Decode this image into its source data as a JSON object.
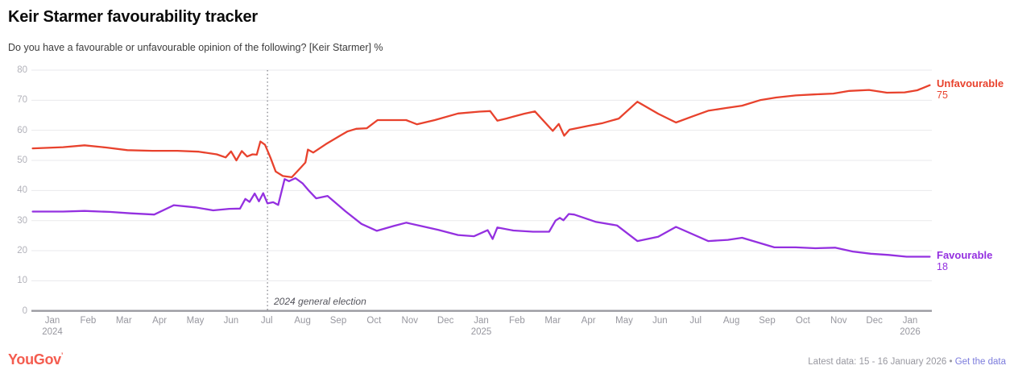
{
  "header": {
    "title": "Keir Starmer favourability tracker",
    "subtitle": "Do you have a favourable or unfavourable opinion of the following? [Keir Starmer] %"
  },
  "chart_data": {
    "type": "line",
    "x_unit": "months since Jan 2024 (fractions = position within month)",
    "ylim": [
      0,
      80
    ],
    "y_ticks": [
      0,
      10,
      20,
      30,
      40,
      50,
      60,
      70,
      80
    ],
    "grid": "horizontal",
    "legend_position": "right-edge-labels",
    "x_ticks": [
      {
        "label": "Jan",
        "year": "2024"
      },
      {
        "label": "Feb"
      },
      {
        "label": "Mar"
      },
      {
        "label": "Apr"
      },
      {
        "label": "May"
      },
      {
        "label": "Jun"
      },
      {
        "label": "Jul"
      },
      {
        "label": "Aug"
      },
      {
        "label": "Sep"
      },
      {
        "label": "Oct"
      },
      {
        "label": "Nov"
      },
      {
        "label": "Dec"
      },
      {
        "label": "Jan",
        "year": "2025"
      },
      {
        "label": "Feb"
      },
      {
        "label": "Mar"
      },
      {
        "label": "Apr"
      },
      {
        "label": "May"
      },
      {
        "label": "Jun"
      },
      {
        "label": "Jul"
      },
      {
        "label": "Aug"
      },
      {
        "label": "Sep"
      },
      {
        "label": "Oct"
      },
      {
        "label": "Nov"
      },
      {
        "label": "Dec"
      },
      {
        "label": "Jan",
        "year": "2026"
      }
    ],
    "annotation": {
      "label": "2024 general election",
      "x": 6.02
    },
    "series": [
      {
        "name": "Unfavourable",
        "color": "#e8422d",
        "latest_value": 75,
        "points": [
          [
            -0.55,
            54
          ],
          [
            0.3,
            54.4
          ],
          [
            0.9,
            55
          ],
          [
            1.5,
            54.3
          ],
          [
            2.1,
            53.4
          ],
          [
            2.8,
            53.2
          ],
          [
            3.5,
            53.2
          ],
          [
            4.1,
            52.9
          ],
          [
            4.6,
            52
          ],
          [
            4.85,
            51
          ],
          [
            5.0,
            53
          ],
          [
            5.15,
            50
          ],
          [
            5.3,
            53.1
          ],
          [
            5.45,
            51.3
          ],
          [
            5.6,
            52
          ],
          [
            5.72,
            51.9
          ],
          [
            5.82,
            56.3
          ],
          [
            5.95,
            55.2
          ],
          [
            6.1,
            51
          ],
          [
            6.25,
            46.3
          ],
          [
            6.45,
            44.8
          ],
          [
            6.7,
            44.4
          ],
          [
            6.95,
            47.6
          ],
          [
            7.08,
            49.3
          ],
          [
            7.15,
            53.6
          ],
          [
            7.3,
            52.6
          ],
          [
            7.65,
            55.4
          ],
          [
            8.05,
            58.2
          ],
          [
            8.25,
            59.6
          ],
          [
            8.5,
            60.5
          ],
          [
            8.8,
            60.7
          ],
          [
            9.1,
            63.4
          ],
          [
            9.5,
            63.4
          ],
          [
            9.9,
            63.4
          ],
          [
            10.2,
            62
          ],
          [
            10.7,
            63.4
          ],
          [
            11.35,
            65.6
          ],
          [
            11.95,
            66.2
          ],
          [
            12.25,
            66.4
          ],
          [
            12.45,
            63.2
          ],
          [
            12.7,
            63.9
          ],
          [
            13.2,
            65.5
          ],
          [
            13.5,
            66.3
          ],
          [
            14.0,
            59.8
          ],
          [
            14.17,
            62.1
          ],
          [
            14.32,
            58.2
          ],
          [
            14.47,
            60.2
          ],
          [
            15.0,
            61.5
          ],
          [
            15.4,
            62.4
          ],
          [
            15.85,
            63.9
          ],
          [
            16.37,
            69.5
          ],
          [
            16.95,
            65.5
          ],
          [
            17.45,
            62.6
          ],
          [
            17.95,
            64.8
          ],
          [
            18.35,
            66.5
          ],
          [
            18.85,
            67.4
          ],
          [
            19.3,
            68.2
          ],
          [
            19.8,
            70
          ],
          [
            20.25,
            70.9
          ],
          [
            20.8,
            71.6
          ],
          [
            21.3,
            71.9
          ],
          [
            21.85,
            72.2
          ],
          [
            22.3,
            73.1
          ],
          [
            22.85,
            73.4
          ],
          [
            23.35,
            72.5
          ],
          [
            23.85,
            72.6
          ],
          [
            24.2,
            73.3
          ],
          [
            24.55,
            75
          ]
        ]
      },
      {
        "name": "Favourable",
        "color": "#9430e0",
        "latest_value": 18,
        "points": [
          [
            -0.55,
            33
          ],
          [
            0.3,
            33
          ],
          [
            0.9,
            33.2
          ],
          [
            1.6,
            32.9
          ],
          [
            2.2,
            32.4
          ],
          [
            2.85,
            32
          ],
          [
            3.4,
            35.1
          ],
          [
            4.0,
            34.4
          ],
          [
            4.5,
            33.4
          ],
          [
            4.95,
            33.9
          ],
          [
            5.25,
            34
          ],
          [
            5.4,
            37.2
          ],
          [
            5.52,
            36.2
          ],
          [
            5.66,
            39
          ],
          [
            5.78,
            36.4
          ],
          [
            5.9,
            39.1
          ],
          [
            6.02,
            35.7
          ],
          [
            6.18,
            36.1
          ],
          [
            6.32,
            35.2
          ],
          [
            6.5,
            43.8
          ],
          [
            6.62,
            43.1
          ],
          [
            6.8,
            44.1
          ],
          [
            7.0,
            42.4
          ],
          [
            7.18,
            39.9
          ],
          [
            7.38,
            37.4
          ],
          [
            7.7,
            38.2
          ],
          [
            8.2,
            33.1
          ],
          [
            8.65,
            28.9
          ],
          [
            9.08,
            26.6
          ],
          [
            9.55,
            28.2
          ],
          [
            9.9,
            29.3
          ],
          [
            10.35,
            28.1
          ],
          [
            10.8,
            26.9
          ],
          [
            11.35,
            25.2
          ],
          [
            11.8,
            24.8
          ],
          [
            12.18,
            26.8
          ],
          [
            12.32,
            23.9
          ],
          [
            12.45,
            27.7
          ],
          [
            12.9,
            26.7
          ],
          [
            13.45,
            26.3
          ],
          [
            13.9,
            26.3
          ],
          [
            14.08,
            30
          ],
          [
            14.2,
            30.9
          ],
          [
            14.3,
            30.1
          ],
          [
            14.45,
            32.2
          ],
          [
            14.6,
            32
          ],
          [
            15.2,
            29.6
          ],
          [
            15.8,
            28.4
          ],
          [
            16.37,
            23.2
          ],
          [
            16.95,
            24.6
          ],
          [
            17.45,
            27.9
          ],
          [
            18.35,
            23.2
          ],
          [
            18.9,
            23.6
          ],
          [
            19.3,
            24.3
          ],
          [
            20.2,
            21.1
          ],
          [
            20.8,
            21.1
          ],
          [
            21.35,
            20.8
          ],
          [
            21.9,
            21
          ],
          [
            22.4,
            19.7
          ],
          [
            22.9,
            19
          ],
          [
            23.4,
            18.6
          ],
          [
            23.9,
            18
          ],
          [
            24.55,
            18
          ]
        ]
      }
    ]
  },
  "footer": {
    "logo": "YouGov",
    "logo_mark": "’",
    "latest_data": "Latest data: 15 - 16 January 2026",
    "separator": "•",
    "link_label": "Get the data"
  }
}
